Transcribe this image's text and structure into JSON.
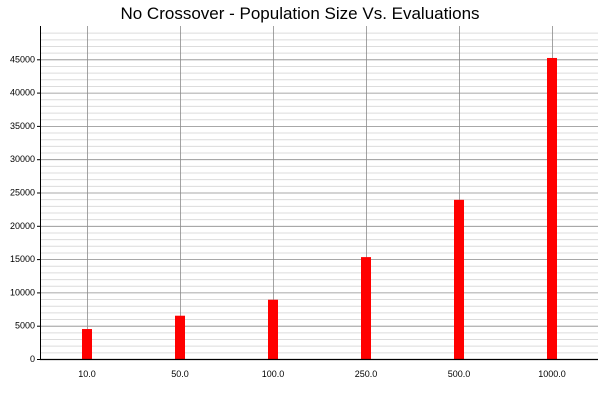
{
  "chart_data": {
    "type": "bar",
    "title": "No Crossover - Population Size Vs. Evaluations",
    "xlabel": "",
    "ylabel": "",
    "categories": [
      "10.0",
      "50.0",
      "100.0",
      "250.0",
      "500.0",
      "1000.0"
    ],
    "values": [
      4500,
      6500,
      8900,
      15300,
      23900,
      45200
    ],
    "ylim": [
      0,
      50000
    ],
    "yticks": [
      0,
      5000,
      10000,
      15000,
      20000,
      25000,
      30000,
      35000,
      40000,
      45000
    ],
    "minor_step": 1000,
    "grid": true,
    "legend": "none",
    "colors": {
      "bar": "#ff0000",
      "major_grid": "#8c8c8c",
      "minor_grid": "#dcdcdc",
      "axis": "#000000"
    }
  }
}
